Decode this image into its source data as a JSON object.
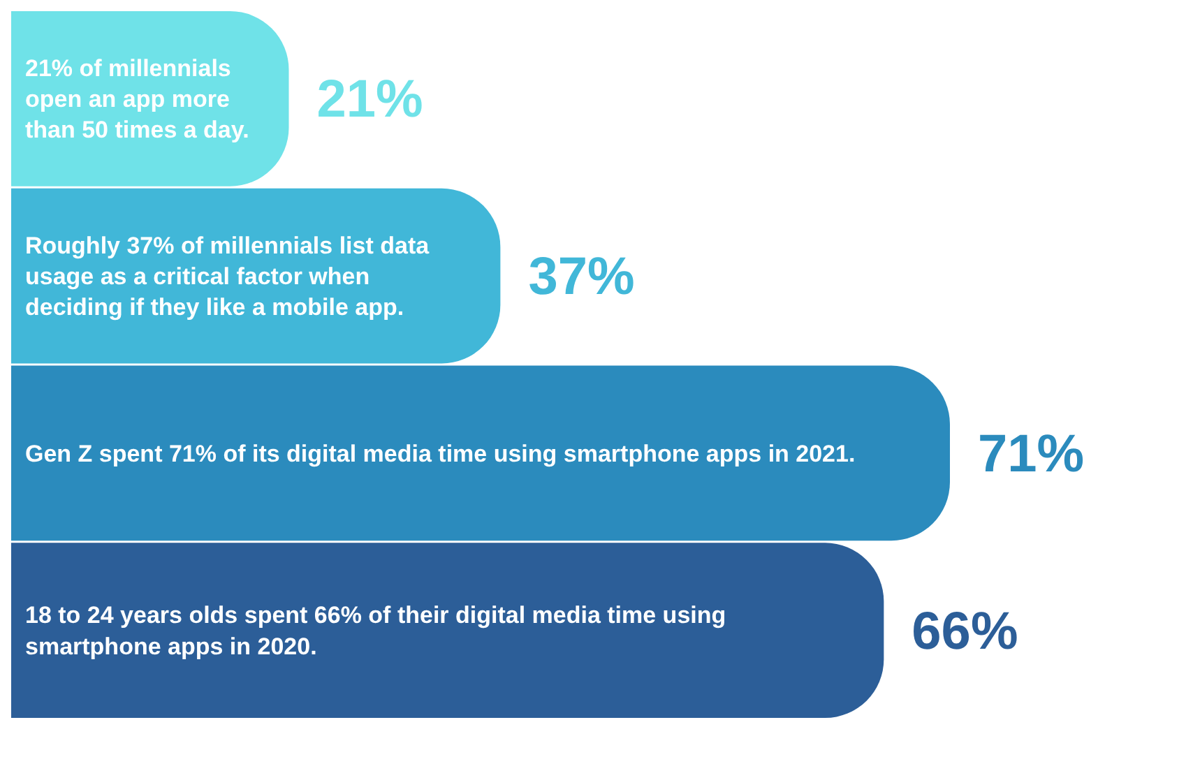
{
  "chart_data": {
    "type": "bar",
    "orientation": "horizontal",
    "data_labels": true,
    "categories": [
      "21% of millennials open an app more than 50 times a day.",
      "Roughly 37% of millennials list data usage as a critical factor when deciding if they like a mobile app.",
      "Gen Z spent 71% of its digital media time using smartphone apps in 2021.",
      "18 to 24 years olds spent 66% of their digital media time using smartphone apps in 2020."
    ],
    "values": [
      21,
      37,
      71,
      66
    ],
    "value_labels": [
      "21%",
      "37%",
      "71%",
      "66%"
    ],
    "colors": [
      "#6fe2e8",
      "#41b7d8",
      "#2b8bbd",
      "#2c5e98"
    ]
  }
}
